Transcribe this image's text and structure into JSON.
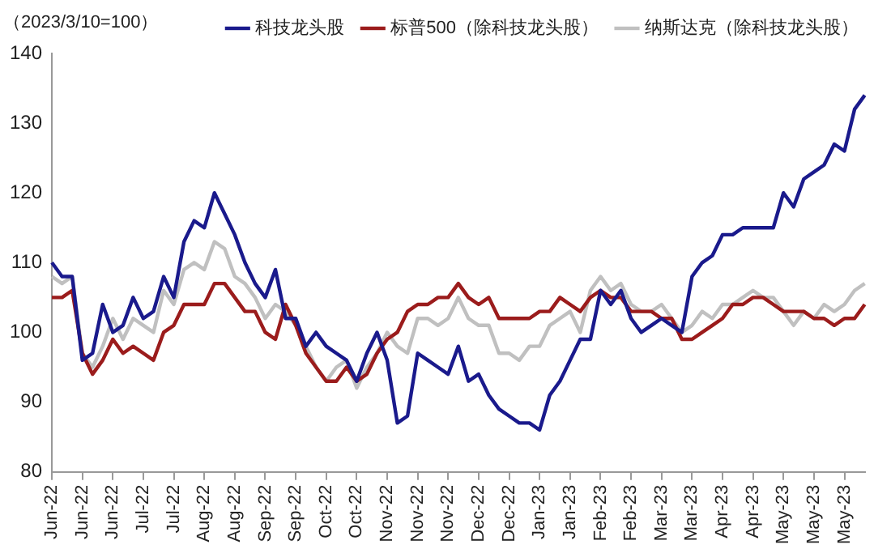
{
  "chart_data": {
    "type": "line",
    "ylabel": "（2023/3/10=100）",
    "categories": [
      "Jun-22",
      null,
      null,
      "Jun-22",
      null,
      null,
      "Jun-22",
      null,
      null,
      "Jul-22",
      null,
      null,
      "Jul-22",
      null,
      null,
      "Aug-22",
      null,
      null,
      "Aug-22",
      null,
      null,
      "Sep-22",
      null,
      null,
      "Sep-22",
      null,
      null,
      "Oct-22",
      null,
      null,
      "Oct-22",
      null,
      null,
      "Nov-22",
      null,
      null,
      "Nov-22",
      null,
      null,
      "Nov-22",
      null,
      null,
      "Dec-22",
      null,
      null,
      "Dec-22",
      null,
      null,
      "Jan-23",
      null,
      null,
      "Jan-23",
      null,
      null,
      "Feb-23",
      null,
      null,
      "Feb-23",
      null,
      null,
      "Mar-23",
      null,
      null,
      "Mar-23",
      null,
      null,
      "Apr-23",
      null,
      null,
      "Apr-23",
      null,
      null,
      "May-23",
      null,
      null,
      "May-23",
      null,
      null,
      "May-23",
      null,
      null
    ],
    "series": [
      {
        "name": "科技龙头股",
        "color": "#1a1a8c",
        "values": [
          110,
          108,
          108,
          96,
          97,
          104,
          100,
          101,
          105,
          102,
          103,
          108,
          105,
          113,
          116,
          115,
          120,
          117,
          114,
          110,
          107,
          105,
          109,
          102,
          102,
          98,
          100,
          98,
          97,
          96,
          93,
          97,
          100,
          96,
          87,
          88,
          97,
          96,
          95,
          94,
          98,
          93,
          94,
          91,
          89,
          88,
          87,
          87,
          86,
          91,
          93,
          96,
          99,
          99,
          106,
          104,
          106,
          102,
          100,
          101,
          102,
          101,
          100,
          108,
          110,
          111,
          114,
          114,
          115,
          115,
          115,
          115,
          120,
          118,
          122,
          123,
          124,
          127,
          126,
          132,
          134
        ]
      },
      {
        "name": "标普500（除科技龙头股）",
        "color": "#9b1c1c",
        "values": [
          105,
          105,
          106,
          97,
          94,
          96,
          99,
          97,
          98,
          97,
          96,
          100,
          101,
          104,
          104,
          104,
          107,
          107,
          105,
          103,
          103,
          100,
          99,
          104,
          101,
          97,
          95,
          93,
          93,
          95,
          93,
          94,
          97,
          99,
          100,
          103,
          104,
          104,
          105,
          105,
          107,
          105,
          104,
          105,
          102,
          102,
          102,
          102,
          103,
          103,
          105,
          104,
          103,
          105,
          106,
          105,
          105,
          103,
          103,
          103,
          102,
          102,
          99,
          99,
          100,
          101,
          102,
          104,
          104,
          105,
          105,
          104,
          103,
          103,
          103,
          102,
          102,
          101,
          102,
          102,
          104
        ]
      },
      {
        "name": "纳斯达克（除科技龙头股）",
        "color": "#c0c0c0",
        "values": [
          108,
          107,
          108,
          97,
          95,
          98,
          102,
          99,
          102,
          101,
          100,
          106,
          104,
          109,
          110,
          109,
          113,
          112,
          108,
          107,
          105,
          102,
          104,
          103,
          101,
          98,
          95,
          93,
          95,
          96,
          92,
          95,
          97,
          100,
          98,
          97,
          102,
          102,
          101,
          102,
          105,
          102,
          101,
          101,
          97,
          97,
          96,
          98,
          98,
          101,
          102,
          103,
          100,
          106,
          108,
          106,
          107,
          104,
          103,
          103,
          104,
          102,
          100,
          101,
          103,
          102,
          104,
          104,
          105,
          106,
          105,
          105,
          103,
          101,
          103,
          102,
          104,
          103,
          104,
          106,
          107
        ]
      }
    ],
    "ylim": [
      80,
      140
    ],
    "yticks": [
      80,
      90,
      100,
      110,
      120,
      130,
      140
    ],
    "grid": false,
    "legend": "top right",
    "marker": "none",
    "line_style": "solid"
  }
}
